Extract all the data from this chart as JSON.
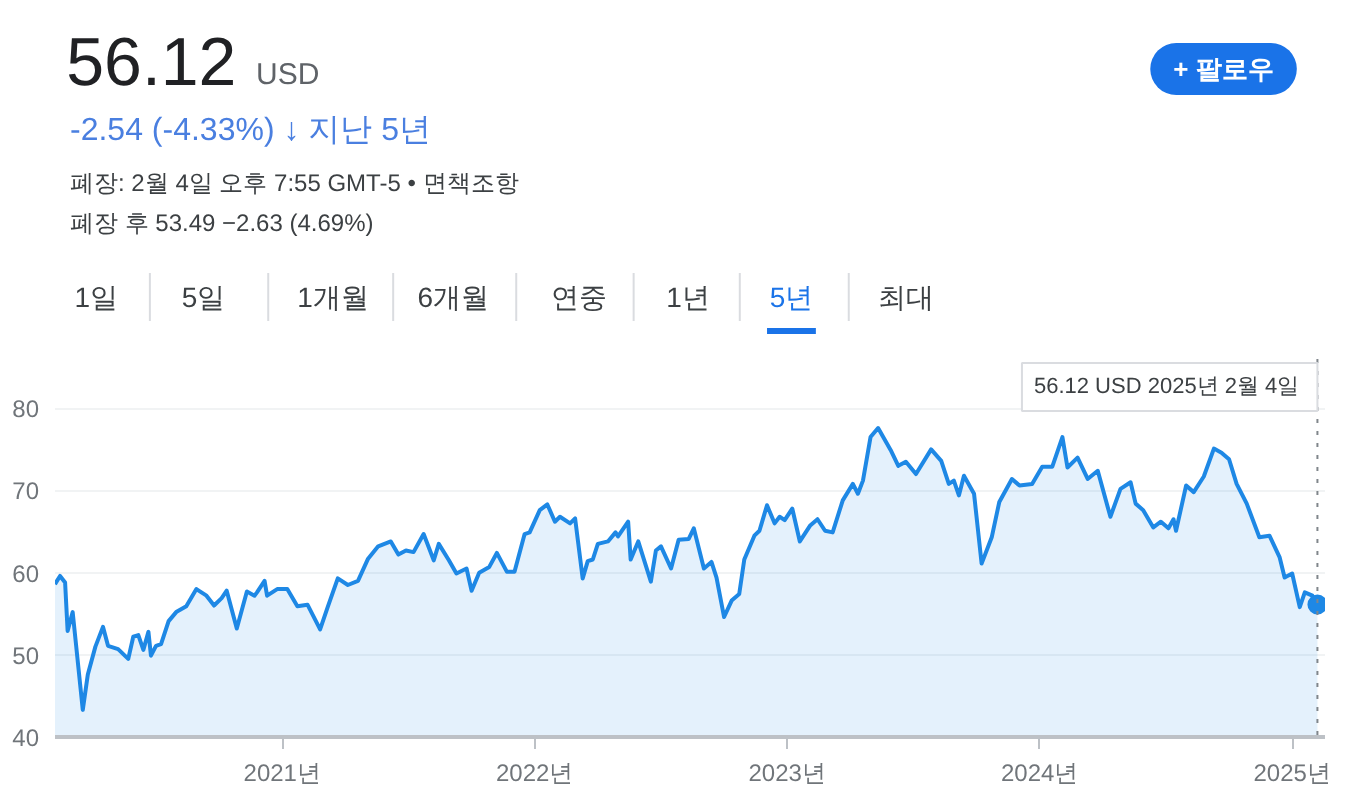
{
  "chart_data": {
    "type": "area",
    "title": "56.12",
    "subtitle": "USD",
    "annotations": [
      "-2.54 (-4.33%) ↓ 지난 5년",
      "폐장: 2월 4일 오후 7:55 GMT-5 • 면책조항",
      "폐장 후 53.49 −2.63 (4.69%)",
      "+ 팔로우",
      "1일",
      "5일",
      "1개월",
      "6개월",
      "연중",
      "1년",
      "5년",
      "최대",
      "56.12 USD  2025년 2월 4일"
    ],
    "series": [
      {
        "color": "#1e88e5",
        "x": [
          2020.1,
          2020.12,
          2020.14,
          2020.15,
          2020.17,
          2020.21,
          2020.23,
          2020.26,
          2020.29,
          2020.31,
          2020.35,
          2020.39,
          2020.41,
          2020.43,
          2020.45,
          2020.47,
          2020.48,
          2020.5,
          2020.52,
          2020.55,
          2020.58,
          2020.62,
          2020.66,
          2020.7,
          2020.73,
          2020.76,
          2020.78,
          2020.82,
          2020.86,
          2020.89,
          2020.9,
          2020.93,
          2020.94,
          2020.98,
          2021.02,
          2021.06,
          2021.1,
          2021.15,
          2021.18,
          2021.22,
          2021.26,
          2021.3,
          2021.34,
          2021.38,
          2021.43,
          2021.46,
          2021.49,
          2021.52,
          2021.56,
          2021.6,
          2021.62,
          2021.66,
          2021.69,
          2021.73,
          2021.75,
          2021.78,
          2021.82,
          2021.85,
          2021.89,
          2021.92,
          2021.96,
          2021.98,
          2022.02,
          2022.05,
          2022.08,
          2022.1,
          2022.14,
          2022.16,
          2022.19,
          2022.21,
          2022.23,
          2022.25,
          2022.29,
          2022.32,
          2022.33,
          2022.37,
          2022.38,
          2022.41,
          2022.46,
          2022.48,
          2022.5,
          2022.54,
          2022.57,
          2022.61,
          2022.63,
          2022.67,
          2022.7,
          2022.72,
          2022.75,
          2022.78,
          2022.81,
          2022.83,
          2022.87,
          2022.89,
          2022.92,
          2022.95,
          2022.97,
          2022.99,
          2023.02,
          2023.05,
          2023.09,
          2023.12,
          2023.15,
          2023.18,
          2023.22,
          2023.26,
          2023.28,
          2023.3,
          2023.33,
          2023.36,
          2023.41,
          2023.44,
          2023.47,
          2023.51,
          2023.57,
          2023.61,
          2023.64,
          2023.66,
          2023.68,
          2023.7,
          2023.74,
          2023.77,
          2023.81,
          2023.84,
          2023.89,
          2023.92,
          2023.97,
          2024.01,
          2024.05,
          2024.09,
          2024.11,
          2024.15,
          2024.19,
          2024.23,
          2024.28,
          2024.32,
          2024.36,
          2024.38,
          2024.41,
          2024.45,
          2024.48,
          2024.51,
          2024.53,
          2024.54,
          2024.58,
          2024.61,
          2024.65,
          2024.69,
          2024.72,
          2024.75,
          2024.78,
          2024.82,
          2024.87,
          2024.91,
          2024.95,
          2024.97,
          2025.0,
          2025.03,
          2025.05,
          2025.08,
          2025.1
        ],
        "values": [
          58.6,
          59.6,
          58.8,
          52.9,
          55.2,
          43.3,
          47.6,
          51.0,
          53.4,
          51.1,
          50.7,
          49.5,
          52.2,
          52.4,
          50.6,
          52.8,
          49.9,
          51.1,
          51.3,
          54.1,
          55.2,
          55.9,
          58.0,
          57.2,
          56.0,
          56.9,
          57.8,
          53.2,
          57.7,
          57.2,
          57.6,
          59.0,
          57.2,
          58.0,
          58.0,
          55.9,
          56.1,
          53.1,
          55.8,
          59.3,
          58.5,
          59.0,
          61.7,
          63.2,
          63.8,
          62.2,
          62.7,
          62.5,
          64.7,
          61.5,
          63.5,
          61.5,
          59.9,
          60.5,
          57.8,
          60.0,
          60.7,
          62.4,
          60.1,
          60.1,
          64.7,
          64.9,
          67.6,
          68.3,
          66.2,
          66.8,
          66.0,
          66.6,
          59.3,
          61.4,
          61.6,
          63.5,
          63.8,
          64.9,
          64.4,
          66.2,
          61.6,
          63.8,
          58.9,
          62.7,
          63.2,
          60.5,
          64.0,
          64.1,
          65.4,
          60.5,
          61.3,
          59.4,
          54.6,
          56.6,
          57.4,
          61.6,
          64.5,
          65.1,
          68.2,
          66.0,
          66.8,
          66.4,
          67.8,
          63.8,
          65.7,
          66.5,
          65.1,
          64.9,
          68.8,
          70.8,
          69.6,
          71.2,
          76.5,
          77.6,
          74.9,
          73.0,
          73.5,
          72.0,
          75.0,
          73.6,
          70.8,
          71.2,
          69.4,
          71.8,
          69.6,
          61.1,
          64.3,
          68.6,
          71.4,
          70.6,
          70.8,
          72.9,
          72.9,
          76.5,
          72.8,
          74.0,
          71.4,
          72.4,
          66.8,
          70.2,
          71.0,
          68.4,
          67.6,
          65.5,
          66.2,
          65.4,
          66.5,
          65.1,
          70.6,
          69.8,
          71.7,
          75.1,
          74.6,
          73.8,
          70.8,
          68.4,
          64.3,
          64.5,
          61.9,
          59.4,
          59.9,
          55.8,
          57.6,
          57.2,
          56.12
        ]
      },
      {
        "type": "scatter",
        "color": "#1e88e5",
        "marker": "circle",
        "x": [
          2025.1
        ],
        "values": [
          56.12
        ]
      }
    ],
    "ref_lines": [
      {
        "axis": "x",
        "value": 2025.1,
        "color": "#80868b",
        "line_style": "dotted"
      }
    ],
    "xlim": [
      2020.1,
      2025.13
    ],
    "ylim": [
      40,
      86
    ],
    "xticks": [
      {
        "value": 2021,
        "label": "2021년"
      },
      {
        "value": 2022,
        "label": "2022년"
      },
      {
        "value": 2023,
        "label": "2023년"
      },
      {
        "value": 2024,
        "label": "2024년"
      },
      {
        "value": 2025,
        "label": "2025년"
      }
    ],
    "yticks": [
      40,
      50,
      60,
      70,
      80
    ],
    "grid": "y",
    "marker": "none",
    "line_style": "solid"
  }
}
